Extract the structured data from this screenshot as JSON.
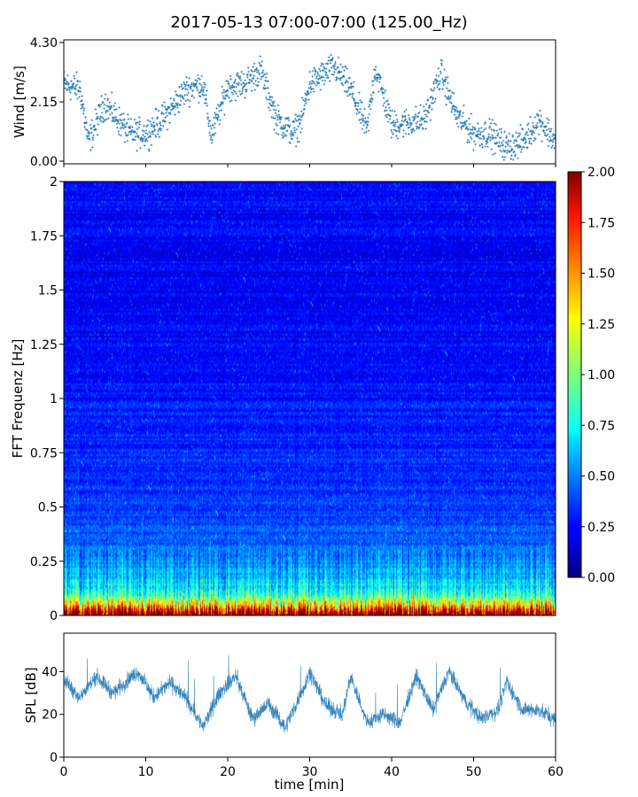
{
  "figure": {
    "title": "2017-05-13 07:00-07:00 (125.00_Hz)",
    "xlabel": "time [min]"
  },
  "chart_data": [
    {
      "type": "scatter",
      "name": "wind",
      "ylabel": "Wind [m/s]",
      "xlim": [
        0,
        60
      ],
      "ylim": [
        0,
        4.3
      ],
      "yticks": [
        "0.00",
        "2.15",
        "4.30"
      ],
      "marker_color": "#1f77b4",
      "trend": {
        "x": [
          0,
          2,
          3,
          5,
          8,
          10,
          12,
          15,
          17,
          18,
          20,
          22,
          24,
          26,
          28,
          29,
          30,
          33,
          35,
          37,
          38,
          40,
          42,
          44,
          46,
          48,
          50,
          52,
          54,
          56,
          58,
          60
        ],
        "y": [
          2.8,
          2.6,
          0.7,
          2.1,
          1.0,
          1.0,
          1.5,
          2.6,
          2.8,
          0.9,
          2.7,
          2.8,
          3.3,
          1.5,
          1.0,
          1.5,
          2.8,
          3.4,
          2.6,
          1.1,
          3.4,
          1.3,
          1.4,
          1.5,
          3.2,
          1.6,
          1.0,
          1.0,
          0.5,
          0.7,
          1.5,
          0.7
        ]
      }
    },
    {
      "type": "heatmap",
      "name": "fft-spectrogram",
      "ylabel": "FFT Frequenz [Hz]",
      "xlim": [
        0,
        60
      ],
      "ylim": [
        0,
        2
      ],
      "yticks": [
        "0",
        "0.25",
        "0.5",
        "0.75",
        "1",
        "1.25",
        "1.5",
        "1.75",
        "2"
      ],
      "colormap": "jet",
      "colorbar": {
        "min": 0,
        "max": 2,
        "ticks": [
          "0.00",
          "0.25",
          "0.50",
          "0.75",
          "1.00",
          "1.25",
          "1.50",
          "1.75",
          "2.00"
        ]
      },
      "level_profile": {
        "frequency": [
          0,
          0.05,
          0.1,
          0.2,
          0.3,
          0.5,
          1.0,
          1.5,
          2.0
        ],
        "value": [
          2.0,
          1.2,
          0.75,
          0.55,
          0.45,
          0.35,
          0.28,
          0.22,
          0.25
        ]
      }
    },
    {
      "type": "line",
      "name": "spl",
      "ylabel": "SPL [dB]",
      "xlim": [
        0,
        60
      ],
      "ylim": [
        0,
        58
      ],
      "yticks": [
        "0",
        "20",
        "40"
      ],
      "xticks": [
        "0",
        "10",
        "20",
        "30",
        "40",
        "50",
        "60"
      ],
      "line_color": "#1f77b4",
      "trend": {
        "x": [
          0,
          2,
          4,
          6,
          9,
          11,
          13,
          15,
          17,
          19,
          21,
          23,
          25,
          27,
          29,
          30,
          32,
          34,
          35,
          37,
          39,
          41,
          43,
          45,
          47,
          49,
          51,
          53,
          54,
          56,
          58,
          60
        ],
        "y": [
          36,
          28,
          38,
          30,
          40,
          28,
          35,
          27,
          14,
          30,
          38,
          18,
          25,
          14,
          30,
          40,
          24,
          20,
          38,
          16,
          20,
          16,
          38,
          22,
          40,
          26,
          18,
          22,
          35,
          22,
          22,
          17
        ]
      }
    }
  ]
}
